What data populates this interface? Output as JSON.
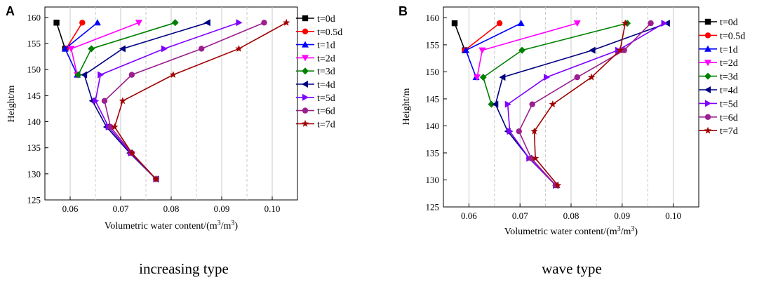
{
  "chart_data": [
    {
      "type": "line",
      "panel": "A",
      "caption": "increasing type",
      "xlabel_main": "Volumetric water content/(m",
      "xlabel_sup1": "3",
      "xlabel_mid": "/m",
      "xlabel_sup2": "3",
      "xlabel_end": ")",
      "ylabel": "Height/m",
      "xlim": [
        0.055,
        0.105
      ],
      "ylim": [
        125,
        162
      ],
      "xticks": [
        0.06,
        0.07,
        0.08,
        0.09,
        0.1
      ],
      "xtick_labels": [
        "0.06",
        "0.07",
        "0.08",
        "0.09",
        "0.10"
      ],
      "yticks": [
        125,
        130,
        135,
        140,
        145,
        150,
        155,
        160
      ],
      "ytick_labels": [
        "125",
        "130",
        "135",
        "140",
        "145",
        "150",
        "155",
        "160"
      ],
      "legend_position": "right",
      "series": [
        {
          "name": "t=0d",
          "color": "#000000",
          "marker": "square",
          "x": [
            0.0573,
            0.059
          ],
          "y": [
            159,
            154
          ]
        },
        {
          "name": "t=0.5d",
          "color": "#ff0000",
          "marker": "circle",
          "x": [
            0.0624,
            0.0592
          ],
          "y": [
            159,
            154
          ]
        },
        {
          "name": "t=1d",
          "color": "#0000ff",
          "marker": "triangle-up",
          "x": [
            0.0654,
            0.059,
            0.0614
          ],
          "y": [
            159,
            154,
            149
          ]
        },
        {
          "name": "t=2d",
          "color": "#ff00ff",
          "marker": "triangle-down",
          "x": [
            0.0736,
            0.0602,
            0.0614
          ],
          "y": [
            159,
            154,
            149
          ]
        },
        {
          "name": "t=3d",
          "color": "#008000",
          "marker": "diamond",
          "x": [
            0.0808,
            0.0642,
            0.0616
          ],
          "y": [
            159,
            154,
            149
          ]
        },
        {
          "name": "t=4d",
          "color": "#000080",
          "marker": "triangle-left",
          "x": [
            0.0872,
            0.0704,
            0.0628,
            0.0644,
            0.0672,
            0.0718,
            0.077
          ],
          "y": [
            159,
            154,
            149,
            144,
            139,
            134,
            129
          ]
        },
        {
          "name": "t=5d",
          "color": "#8000ff",
          "marker": "triangle-right",
          "x": [
            0.0934,
            0.0786,
            0.066,
            0.065,
            0.0676,
            0.072,
            0.077
          ],
          "y": [
            159,
            154,
            149,
            144,
            139,
            134,
            129
          ]
        },
        {
          "name": "t=6d",
          "color": "#9b1f8f",
          "marker": "circle",
          "x": [
            0.0984,
            0.086,
            0.0722,
            0.0668,
            0.068,
            0.0722,
            0.077
          ],
          "y": [
            159,
            154,
            149,
            144,
            139,
            134,
            129
          ]
        },
        {
          "name": "t=7d",
          "color": "#a00000",
          "marker": "star",
          "x": [
            0.1028,
            0.0934,
            0.0804,
            0.0704,
            0.0688,
            0.0722,
            0.077
          ],
          "y": [
            159,
            154,
            149,
            144,
            139,
            134,
            129
          ]
        }
      ]
    },
    {
      "type": "line",
      "panel": "B",
      "caption": "wave type",
      "xlabel_main": "Volumetric water content/(m",
      "xlabel_sup1": "3",
      "xlabel_mid": "/m",
      "xlabel_sup2": "3",
      "xlabel_end": ")",
      "ylabel": "Height/m",
      "xlim": [
        0.055,
        0.105
      ],
      "ylim": [
        125,
        162
      ],
      "xticks": [
        0.06,
        0.07,
        0.08,
        0.09,
        0.1
      ],
      "xtick_labels": [
        "0.06",
        "0.07",
        "0.08",
        "0.09",
        "0.10"
      ],
      "yticks": [
        125,
        130,
        135,
        140,
        145,
        150,
        155,
        160
      ],
      "ytick_labels": [
        "125",
        "130",
        "135",
        "140",
        "145",
        "150",
        "155",
        "160"
      ],
      "legend_position": "right",
      "series": [
        {
          "name": "t=0d",
          "color": "#000000",
          "marker": "square",
          "x": [
            0.0572,
            0.0592
          ],
          "y": [
            159,
            154
          ]
        },
        {
          "name": "t=0.5d",
          "color": "#ff0000",
          "marker": "circle",
          "x": [
            0.066,
            0.0592
          ],
          "y": [
            159,
            154
          ]
        },
        {
          "name": "t=1d",
          "color": "#0000ff",
          "marker": "triangle-up",
          "x": [
            0.0702,
            0.0594,
            0.0614
          ],
          "y": [
            159,
            154,
            149
          ]
        },
        {
          "name": "t=2d",
          "color": "#ff00ff",
          "marker": "triangle-down",
          "x": [
            0.0812,
            0.0626,
            0.0616
          ],
          "y": [
            159,
            154,
            149
          ]
        },
        {
          "name": "t=3d",
          "color": "#008000",
          "marker": "diamond",
          "x": [
            0.091,
            0.0704,
            0.0628,
            0.0644
          ],
          "y": [
            159,
            154,
            149,
            144
          ]
        },
        {
          "name": "t=4d",
          "color": "#000080",
          "marker": "triangle-left",
          "x": [
            0.0988,
            0.0842,
            0.0666,
            0.0652,
            0.0676,
            0.0718,
            0.077
          ],
          "y": [
            159,
            154,
            149,
            144,
            139,
            134,
            129
          ]
        },
        {
          "name": "t=5d",
          "color": "#8000ff",
          "marker": "triangle-right",
          "x": [
            0.0982,
            0.0892,
            0.0752,
            0.0676,
            0.068,
            0.0718,
            0.077
          ],
          "y": [
            159,
            154,
            149,
            144,
            139,
            134,
            129
          ]
        },
        {
          "name": "t=6d",
          "color": "#9b1f8f",
          "marker": "circle",
          "x": [
            0.0956,
            0.0904,
            0.0812,
            0.0724,
            0.0698,
            0.0722,
            0.077
          ],
          "y": [
            159,
            154,
            149,
            144,
            139,
            134,
            129
          ]
        },
        {
          "name": "t=7d",
          "color": "#a00000",
          "marker": "star",
          "x": [
            0.0906,
            0.0896,
            0.084,
            0.0764,
            0.0728,
            0.073,
            0.0774
          ],
          "y": [
            159,
            154,
            149,
            144,
            139,
            134,
            129
          ]
        }
      ]
    }
  ]
}
